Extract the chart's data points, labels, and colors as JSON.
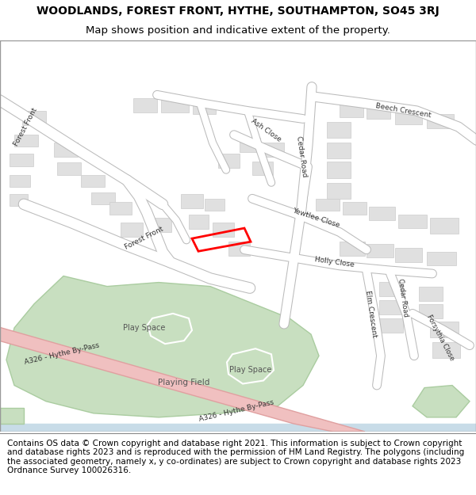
{
  "title_line1": "WOODLANDS, FOREST FRONT, HYTHE, SOUTHAMPTON, SO45 3RJ",
  "title_line2": "Map shows position and indicative extent of the property.",
  "footer_text": "Contains OS data © Crown copyright and database right 2021. This information is subject to Crown copyright and database rights 2023 and is reproduced with the permission of HM Land Registry. The polygons (including the associated geometry, namely x, y co-ordinates) are subject to Crown copyright and database rights 2023 Ordnance Survey 100026316.",
  "bg_color": "#f8f8f8",
  "map_bg": "#ffffff",
  "building_fill": "#e0e0e0",
  "building_stroke": "#cccccc",
  "green_fill": "#c8dfc0",
  "green_stroke": "#aacca0",
  "road_a_fill": "#f0c0c0",
  "road_a_stroke": "#e0a0a0",
  "plot_color": "#ff0000",
  "title_fontsize": 10,
  "footer_fontsize": 7.5
}
